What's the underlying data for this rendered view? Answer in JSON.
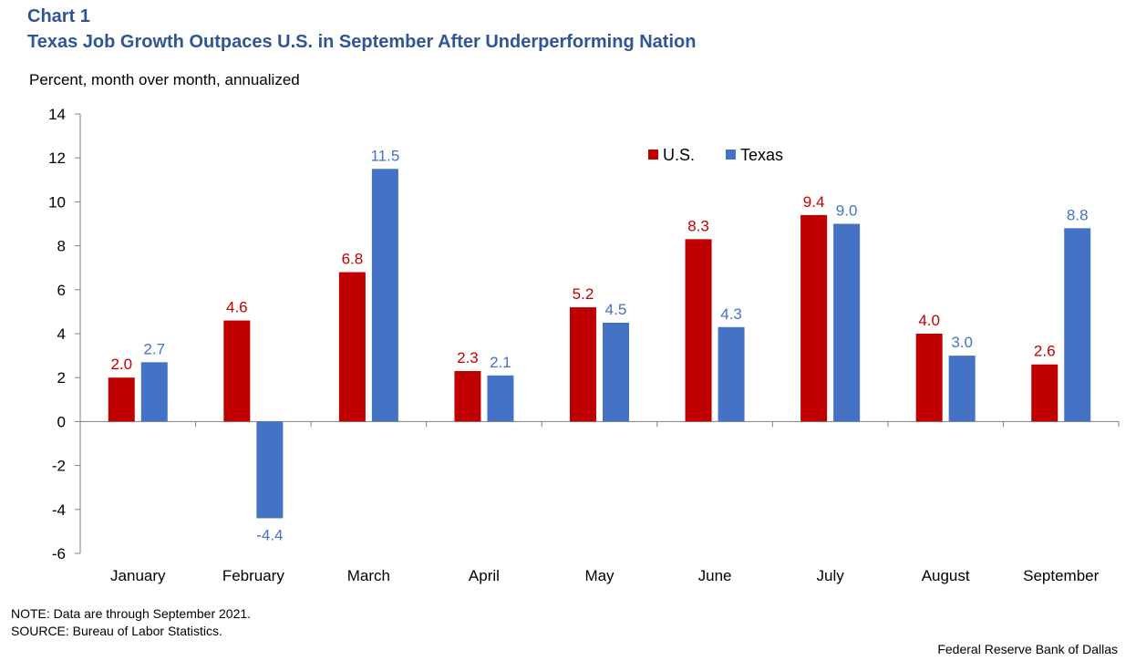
{
  "header": {
    "chart_number": "Chart 1",
    "title": "Texas Job Growth Outpaces U.S. in September After Underperforming Nation"
  },
  "chart_data": {
    "type": "bar",
    "title": "Texas Job Growth Outpaces U.S. in September After Underperforming Nation",
    "ylabel": "Percent, month over month, annualized",
    "xlabel": "",
    "categories": [
      "January",
      "February",
      "March",
      "April",
      "May",
      "June",
      "July",
      "August",
      "September"
    ],
    "series": [
      {
        "name": "U.S.",
        "color": "#c00000",
        "values": [
          2.0,
          4.6,
          6.8,
          2.3,
          5.2,
          8.3,
          9.4,
          4.0,
          2.6
        ],
        "labels": [
          "2.0",
          "4.6",
          "6.8",
          "2.3",
          "5.2",
          "8.3",
          "9.4",
          "4.0",
          "2.6"
        ]
      },
      {
        "name": "Texas",
        "color": "#4472c4",
        "values": [
          2.7,
          -4.4,
          11.5,
          2.1,
          4.5,
          4.3,
          9.0,
          3.0,
          8.8
        ],
        "labels": [
          "2.7",
          "-4.4",
          "11.5",
          "2.1",
          "4.5",
          "4.3",
          "9.0",
          "3.0",
          "8.8"
        ]
      }
    ],
    "ylim": [
      -6,
      14
    ],
    "yticks": [
      14,
      12,
      10,
      8,
      6,
      4,
      2,
      0,
      -2,
      -4,
      -6
    ],
    "grid": false,
    "legend_position": "top-right"
  },
  "footer": {
    "note": "NOTE:  Data are through September 2021.",
    "source": "SOURCE:  Bureau of Labor Statistics.",
    "credit": "Federal Reserve  Bank of Dallas"
  }
}
